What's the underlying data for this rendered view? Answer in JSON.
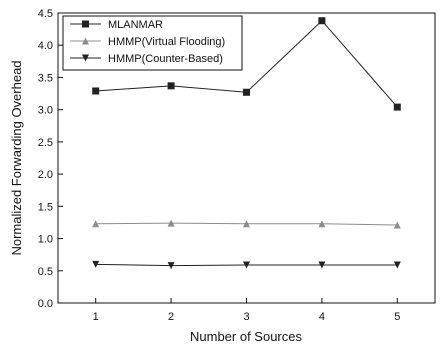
{
  "chart_data": {
    "type": "line",
    "title": "",
    "xlabel": "Number of Sources",
    "ylabel": "Normalized Forwarding Overhead",
    "x": [
      1,
      2,
      3,
      4,
      5
    ],
    "xlim": [
      0.5,
      5.5
    ],
    "ylim": [
      0.0,
      4.5
    ],
    "xticks": [
      "1",
      "2",
      "3",
      "4",
      "5"
    ],
    "yticks": [
      "0.0",
      "0.5",
      "1.0",
      "1.5",
      "2.0",
      "2.5",
      "3.0",
      "3.5",
      "4.0",
      "4.5"
    ],
    "grid": false,
    "legend_position": "top-left",
    "series": [
      {
        "name": "MLANMAR",
        "marker": "square",
        "color": "#222222",
        "values": [
          3.29,
          3.37,
          3.27,
          4.38,
          3.04
        ]
      },
      {
        "name": "HMMP(Virtual Flooding)",
        "marker": "triangle-up",
        "color": "#8c8c8c",
        "values": [
          1.23,
          1.24,
          1.23,
          1.23,
          1.21
        ]
      },
      {
        "name": "HMMP(Counter-Based)",
        "marker": "triangle-down",
        "color": "#222222",
        "values": [
          0.6,
          0.58,
          0.59,
          0.59,
          0.59
        ]
      }
    ]
  }
}
